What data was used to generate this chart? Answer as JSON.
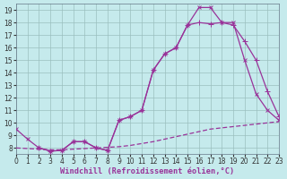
{
  "background_color": "#c5eaec",
  "line_color": "#993399",
  "grid_color": "#9bbfbf",
  "xlabel": "Windchill (Refroidissement éolien,°C)",
  "xlim": [
    0,
    23
  ],
  "ylim": [
    7.5,
    19.5
  ],
  "yticks": [
    8,
    9,
    10,
    11,
    12,
    13,
    14,
    15,
    16,
    17,
    18,
    19
  ],
  "xticks": [
    0,
    1,
    2,
    3,
    4,
    5,
    6,
    7,
    8,
    9,
    10,
    11,
    12,
    13,
    14,
    15,
    16,
    17,
    18,
    19,
    20,
    21,
    22,
    23
  ],
  "curve1_x": [
    0,
    1,
    2,
    3,
    4,
    5,
    6,
    7,
    8,
    9,
    10,
    11,
    12,
    13,
    14,
    15,
    16,
    17,
    18,
    19,
    20,
    21,
    22,
    23
  ],
  "curve1_y": [
    9.5,
    8.7,
    8.0,
    7.75,
    7.8,
    8.5,
    8.5,
    8.0,
    7.8,
    10.2,
    10.5,
    11.0,
    14.2,
    15.5,
    16.0,
    17.8,
    19.2,
    19.2,
    18.0,
    18.0,
    15.0,
    12.3,
    11.0,
    10.2
  ],
  "curve2_x": [
    2,
    3,
    4,
    5,
    6,
    7,
    8,
    9,
    10,
    11,
    12,
    13,
    14,
    15,
    16,
    17,
    18,
    19,
    20,
    21,
    22,
    23
  ],
  "curve2_y": [
    8.0,
    7.75,
    7.8,
    8.5,
    8.5,
    8.0,
    7.8,
    10.2,
    10.5,
    11.0,
    14.2,
    15.5,
    16.0,
    17.8,
    18.0,
    17.9,
    18.0,
    17.8,
    16.5,
    15.0,
    12.5,
    10.5
  ],
  "curve3_x": [
    0,
    1,
    2,
    3,
    4,
    5,
    6,
    7,
    8,
    9,
    10,
    11,
    12,
    13,
    14,
    15,
    16,
    17,
    18,
    19,
    20,
    21,
    22,
    23
  ],
  "curve3_y": [
    8.0,
    7.95,
    7.9,
    7.85,
    7.85,
    7.9,
    7.95,
    8.0,
    8.05,
    8.1,
    8.2,
    8.35,
    8.5,
    8.7,
    8.9,
    9.1,
    9.3,
    9.5,
    9.6,
    9.7,
    9.8,
    9.9,
    10.0,
    10.1
  ],
  "marker_size": 3.0,
  "line_width": 0.9,
  "tick_fontsize": 5.5,
  "xlabel_fontsize": 6.2
}
